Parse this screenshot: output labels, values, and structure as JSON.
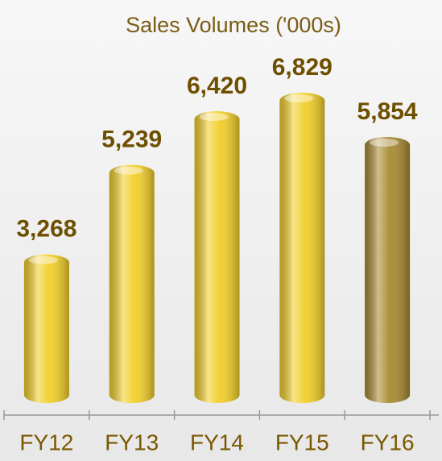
{
  "chart_data": {
    "type": "bar",
    "title": "Sales Volumes ('000s)",
    "categories": [
      "FY12",
      "FY13",
      "FY14",
      "FY15",
      "FY16"
    ],
    "values": [
      3268,
      5239,
      6420,
      6829,
      5854
    ],
    "value_labels": [
      "3,268",
      "5,239",
      "6,420",
      "6,829",
      "5,854"
    ],
    "colors": [
      "#f2cf2a",
      "#f2cf2a",
      "#f2cf2a",
      "#f2cf2a",
      "#a88a32"
    ]
  }
}
